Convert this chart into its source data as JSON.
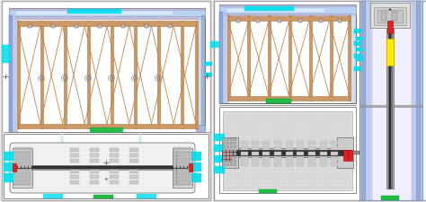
{
  "bg_color": "#e8e8e8",
  "white": "#ffffff",
  "light_gray": "#f0f0f0",
  "mid_gray": "#cccccc",
  "dark_gray": "#888888",
  "blue_light": "#aaccee",
  "blue_strip": "#b8d4f0",
  "purple_strip": "#c8b8d8",
  "cyan": "#00ddee",
  "green": "#22bb44",
  "red": "#dd2222",
  "yellow": "#ffee00",
  "orange_wood": "#cc9966",
  "diag_color": "#bb8855",
  "tan_wall": "#ddbbaa",
  "hatch_bg": "#d8d8d8",
  "dark": "#333333",
  "black": "#111111"
}
